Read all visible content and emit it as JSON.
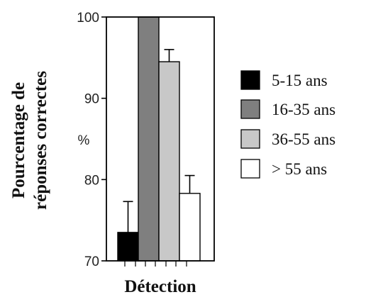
{
  "chart_data": {
    "type": "bar",
    "categories": [
      "Détection"
    ],
    "series": [
      {
        "name": "5-15 ans",
        "values": [
          73.5
        ],
        "error": [
          3.8
        ],
        "color": "#000000"
      },
      {
        "name": "16-35 ans",
        "values": [
          100
        ],
        "error": [
          0
        ],
        "color": "#7f7f7f"
      },
      {
        "name": "36-55 ans",
        "values": [
          94.5
        ],
        "error": [
          1.5
        ],
        "color": "#c8c8c8"
      },
      {
        "name": "> 55 ans",
        "values": [
          78.3
        ],
        "error": [
          2.2
        ],
        "color": "#ffffff"
      }
    ],
    "title": "",
    "xlabel": "Détection",
    "ylabel_line1": "Pourcentage de",
    "ylabel_line2": "réponses correctes",
    "y_unit_label": "%",
    "ylim": [
      70,
      100
    ],
    "yticks": [
      70,
      80,
      90,
      100
    ],
    "legend_position": "right",
    "grid": false
  }
}
